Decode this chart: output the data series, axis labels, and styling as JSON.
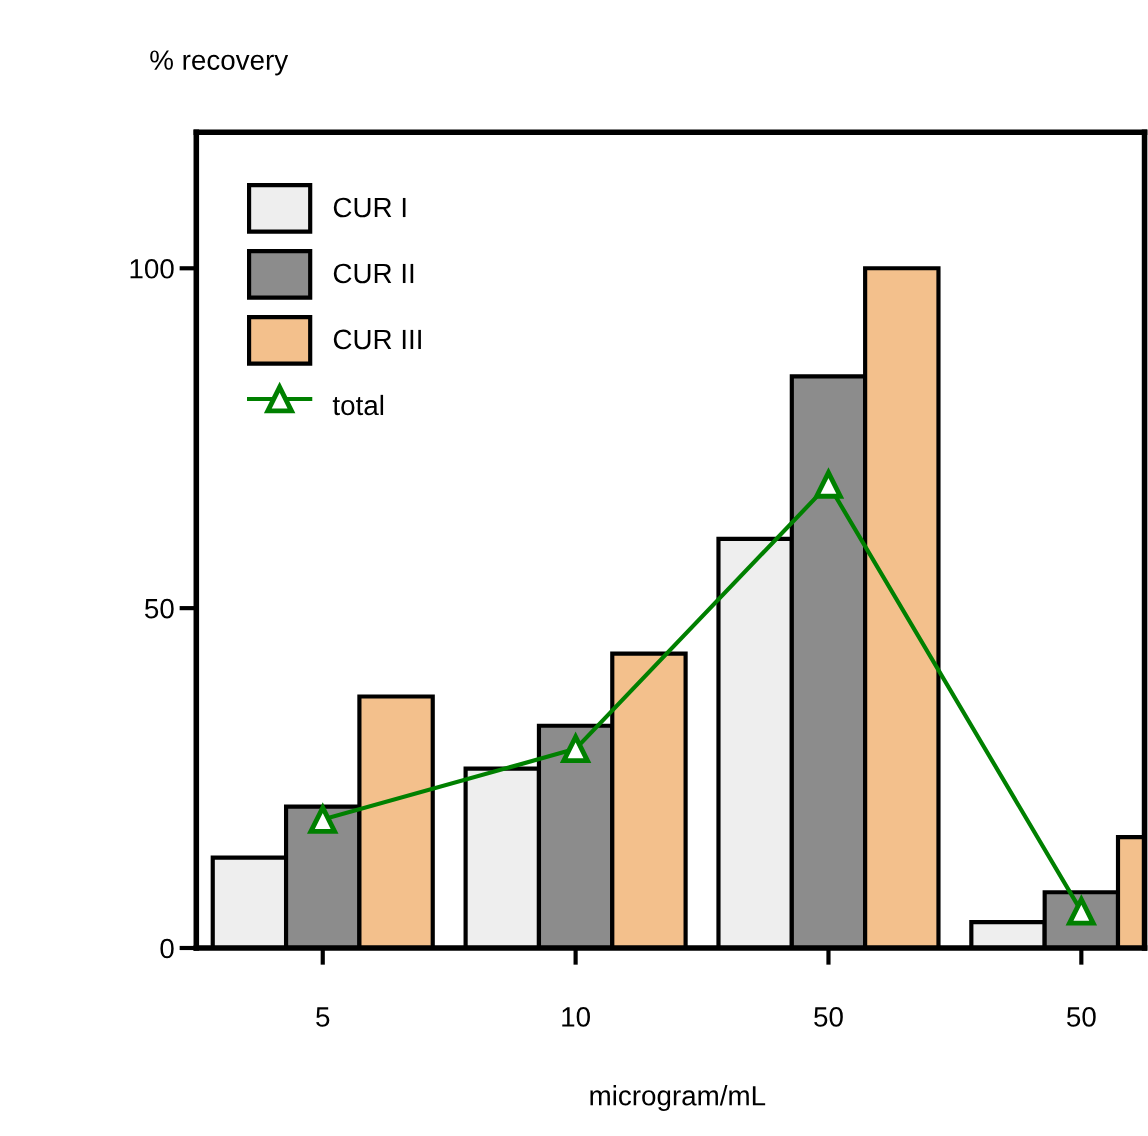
{
  "chart_data": {
    "type": "bar",
    "ylabel": "% recovery",
    "xlabel": "microgram/mL",
    "categories": [
      "5",
      "10",
      "50",
      "50"
    ],
    "series": [
      {
        "name": "CUR I",
        "color": "#eeeeee",
        "values": [
          13.3,
          26.4,
          60.2,
          3.8
        ]
      },
      {
        "name": "CUR II",
        "color": "#8c8c8c",
        "values": [
          20.8,
          32.7,
          84.1,
          8.2
        ]
      },
      {
        "name": "CUR III",
        "color": "#f3c08c",
        "values": [
          37,
          43.3,
          100,
          16.3
        ]
      },
      {
        "name": "total",
        "type": "line",
        "color": "#008000",
        "marker": "triangle",
        "values": [
          18.9,
          29.3,
          68.2,
          5.4
        ]
      }
    ],
    "ylim": [
      0,
      120
    ],
    "yticks": [
      0,
      50,
      100
    ],
    "grid": false,
    "legend": "top left"
  }
}
